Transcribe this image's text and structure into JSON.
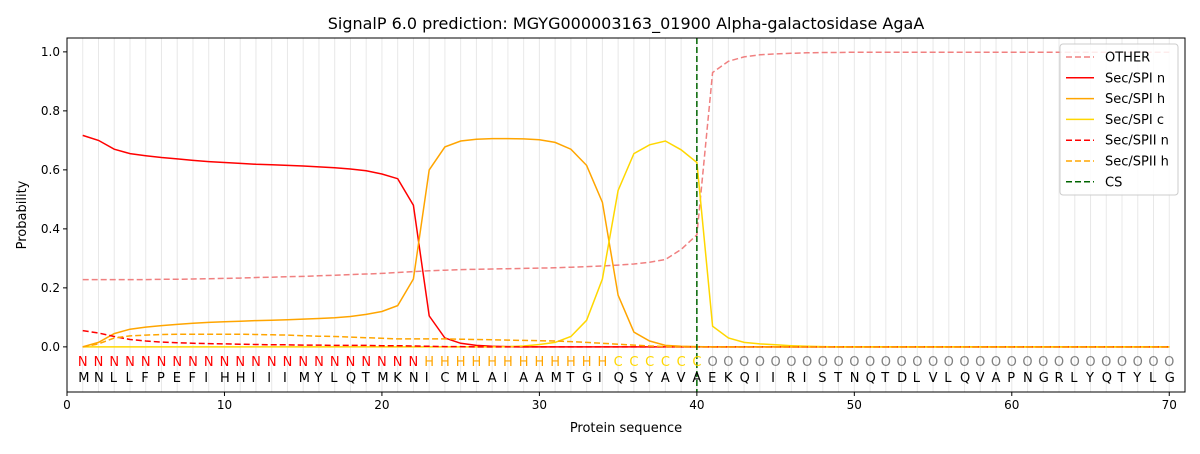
{
  "chart_data": {
    "type": "line",
    "title": "SignalP 6.0 prediction: MGYG000003163_01900 Alpha-galactosidase AgaA",
    "xlabel": "Protein sequence",
    "ylabel": "Probability",
    "xlim": [
      0,
      71
    ],
    "ylim": [
      -0.153,
      1.047
    ],
    "xticks": [
      0,
      10,
      20,
      30,
      40,
      50,
      60,
      70
    ],
    "yticks": [
      "0.0",
      "0.2",
      "0.4",
      "0.6",
      "0.8",
      "1.0"
    ],
    "sequence": "MNLLFPEFIHHIIIMYLQTMKNICMLAIAAMTGIQSYAVAEKQIIRISTNQTDLVLQVAPNGRLYQTYLG",
    "labels": "NNNNNNNNNNNNNNNNNNNNNNHHHHHHHHHHHHCCCCCCOOOOOOOOOOOOOOOOOOOOOOOOOOOOOO",
    "label_colors": {
      "N": "#ff0000",
      "H": "#ffa500",
      "C": "#ffd700",
      "O": "#808080"
    },
    "legend_position": "top-right",
    "cs_position": 40,
    "cs_label": "CS",
    "series": [
      {
        "name": "OTHER",
        "color": "#f08080",
        "dash": true,
        "values": [
          0.228,
          0.228,
          0.228,
          0.228,
          0.228,
          0.229,
          0.229,
          0.23,
          0.231,
          0.232,
          0.233,
          0.235,
          0.236,
          0.238,
          0.239,
          0.241,
          0.243,
          0.245,
          0.247,
          0.249,
          0.252,
          0.255,
          0.258,
          0.26,
          0.262,
          0.263,
          0.264,
          0.265,
          0.266,
          0.267,
          0.268,
          0.27,
          0.272,
          0.274,
          0.277,
          0.281,
          0.287,
          0.296,
          0.33,
          0.38,
          0.93,
          0.968,
          0.983,
          0.99,
          0.993,
          0.995,
          0.997,
          0.998,
          0.998,
          0.999,
          0.999,
          0.999,
          0.999,
          0.999,
          0.999,
          0.999,
          0.999,
          0.999,
          0.999,
          0.999,
          0.999,
          0.999,
          0.999,
          0.999,
          0.999,
          0.999,
          0.999,
          0.999,
          0.999,
          0.999
        ]
      },
      {
        "name": "Sec/SPI n",
        "color": "#ff0000",
        "dash": false,
        "values": [
          0.717,
          0.7,
          0.67,
          0.655,
          0.648,
          0.642,
          0.637,
          0.632,
          0.628,
          0.625,
          0.622,
          0.619,
          0.617,
          0.615,
          0.613,
          0.61,
          0.607,
          0.603,
          0.597,
          0.586,
          0.57,
          0.48,
          0.105,
          0.03,
          0.012,
          0.005,
          0.002,
          0.001,
          0,
          0,
          0,
          0,
          0,
          0,
          0,
          0,
          0,
          0,
          0,
          0,
          0,
          0,
          0,
          0,
          0,
          0,
          0,
          0,
          0,
          0,
          0,
          0,
          0,
          0,
          0,
          0,
          0,
          0,
          0,
          0,
          0,
          0,
          0,
          0,
          0,
          0,
          0,
          0,
          0,
          0
        ]
      },
      {
        "name": "Sec/SPI h",
        "color": "#ffa500",
        "dash": false,
        "values": [
          0,
          0.015,
          0.045,
          0.06,
          0.067,
          0.072,
          0.076,
          0.08,
          0.083,
          0.085,
          0.087,
          0.089,
          0.09,
          0.092,
          0.094,
          0.096,
          0.099,
          0.103,
          0.11,
          0.12,
          0.14,
          0.23,
          0.6,
          0.678,
          0.698,
          0.704,
          0.706,
          0.706,
          0.705,
          0.702,
          0.693,
          0.67,
          0.615,
          0.49,
          0.175,
          0.05,
          0.02,
          0.005,
          0.002,
          0.001,
          0,
          0,
          0,
          0,
          0,
          0,
          0,
          0,
          0,
          0,
          0,
          0,
          0,
          0,
          0,
          0,
          0,
          0,
          0,
          0,
          0,
          0,
          0,
          0,
          0,
          0,
          0,
          0,
          0,
          0
        ]
      },
      {
        "name": "Sec/SPI c",
        "color": "#ffd700",
        "dash": false,
        "values": [
          0,
          0,
          0,
          0,
          0,
          0,
          0,
          0,
          0,
          0,
          0,
          0,
          0,
          0,
          0,
          0,
          0,
          0,
          0,
          0,
          0,
          0,
          0,
          0,
          0,
          0,
          0,
          0.001,
          0.003,
          0.008,
          0.015,
          0.035,
          0.09,
          0.23,
          0.53,
          0.655,
          0.685,
          0.698,
          0.668,
          0.625,
          0.07,
          0.03,
          0.015,
          0.01,
          0.007,
          0.004,
          0.002,
          0.001,
          0,
          0,
          0,
          0,
          0,
          0,
          0,
          0,
          0,
          0,
          0,
          0,
          0,
          0,
          0,
          0,
          0,
          0,
          0,
          0,
          0,
          0
        ]
      },
      {
        "name": "Sec/SPII n",
        "color": "#ff0000",
        "dash": true,
        "values": [
          0.055,
          0.047,
          0.035,
          0.025,
          0.02,
          0.016,
          0.014,
          0.012,
          0.011,
          0.01,
          0.009,
          0.008,
          0.007,
          0.007,
          0.006,
          0.006,
          0.005,
          0.005,
          0.005,
          0.004,
          0.004,
          0.003,
          0.002,
          0.001,
          0.001,
          0,
          0,
          0,
          0,
          0,
          0,
          0,
          0,
          0,
          0,
          0,
          0,
          0,
          0,
          0,
          0,
          0,
          0,
          0,
          0,
          0,
          0,
          0,
          0,
          0,
          0,
          0,
          0,
          0,
          0,
          0,
          0,
          0,
          0,
          0,
          0,
          0,
          0,
          0,
          0,
          0,
          0,
          0,
          0,
          0
        ]
      },
      {
        "name": "Sec/SPII h",
        "color": "#ffa500",
        "dash": true,
        "values": [
          0,
          0.01,
          0.03,
          0.037,
          0.04,
          0.042,
          0.043,
          0.043,
          0.043,
          0.043,
          0.043,
          0.042,
          0.041,
          0.04,
          0.038,
          0.036,
          0.035,
          0.033,
          0.031,
          0.029,
          0.027,
          0.027,
          0.027,
          0.027,
          0.026,
          0.025,
          0.024,
          0.023,
          0.022,
          0.021,
          0.02,
          0.018,
          0.015,
          0.012,
          0.009,
          0.006,
          0.003,
          0.001,
          0,
          0,
          0,
          0,
          0,
          0,
          0,
          0,
          0,
          0,
          0,
          0,
          0,
          0,
          0,
          0,
          0,
          0,
          0,
          0,
          0,
          0,
          0,
          0,
          0,
          0,
          0,
          0,
          0,
          0,
          0,
          0
        ]
      }
    ]
  }
}
